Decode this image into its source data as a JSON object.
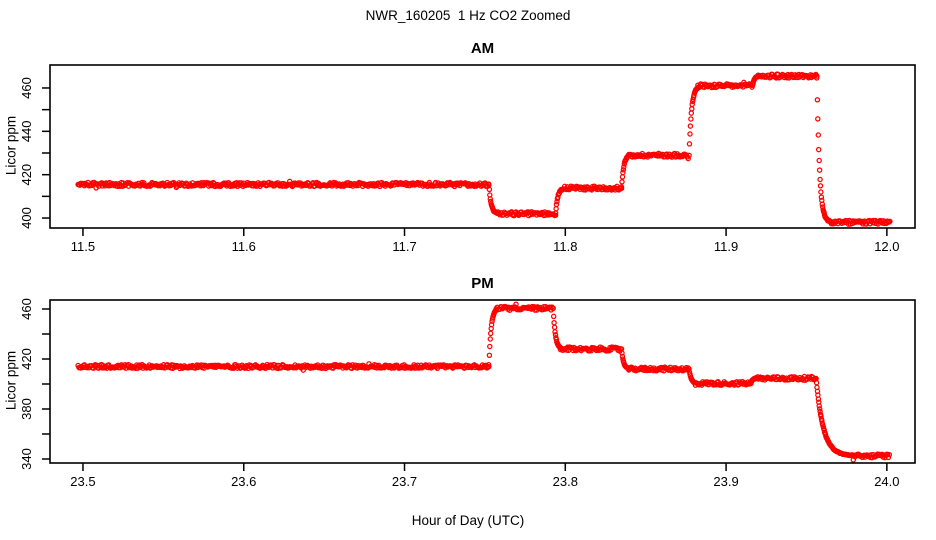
{
  "title": "NWR_160205  1 Hz CO2 Zoomed",
  "xlabel": "Hour of Day (UTC)",
  "point_color": "#FF0000",
  "axis_color": "#000000",
  "chart_data": [
    {
      "type": "scatter",
      "panel": "AM",
      "title": "AM",
      "ylabel": "Licor ppm",
      "marker": "open-circle",
      "grid": false,
      "xlim": [
        11.4795,
        12.0175
      ],
      "ylim": [
        395.4,
        470.6
      ],
      "xticks": [
        11.5,
        11.6,
        11.7,
        11.8,
        11.9,
        12.0
      ],
      "xtick_labels": [
        "11.5",
        "11.6",
        "11.7",
        "11.8",
        "11.9",
        "12.0"
      ],
      "yticks": [
        400,
        420,
        440,
        460
      ],
      "ytick_labels": [
        "400",
        "420",
        "440",
        "460"
      ],
      "yticks_minor": [
        410,
        430,
        450
      ],
      "noise_ppm": 0.9,
      "segments": [
        {
          "kind": "plateau",
          "x0": 11.497,
          "x1": 11.7525,
          "y": 415.5
        },
        {
          "kind": "decay",
          "x0": 11.7525,
          "x1": 11.757,
          "from": 415.5,
          "to": 402,
          "tau": 0.0013
        },
        {
          "kind": "plateau",
          "x0": 11.757,
          "x1": 11.794,
          "y": 402
        },
        {
          "kind": "decay",
          "x0": 11.794,
          "x1": 11.7985,
          "from": 402,
          "to": 413.8,
          "tau": 0.0013
        },
        {
          "kind": "plateau",
          "x0": 11.7985,
          "x1": 11.835,
          "y": 413.8
        },
        {
          "kind": "decay",
          "x0": 11.835,
          "x1": 11.8395,
          "from": 413.8,
          "to": 429,
          "tau": 0.0013
        },
        {
          "kind": "plateau",
          "x0": 11.8395,
          "x1": 11.877,
          "y": 429
        },
        {
          "kind": "decay",
          "x0": 11.877,
          "x1": 11.8825,
          "from": 429,
          "to": 461,
          "tau": 0.0015
        },
        {
          "kind": "plateau",
          "x0": 11.8825,
          "x1": 11.9165,
          "y": 461
        },
        {
          "kind": "decay",
          "x0": 11.9165,
          "x1": 11.92,
          "from": 461,
          "to": 465.5,
          "tau": 0.001
        },
        {
          "kind": "plateau",
          "x0": 11.92,
          "x1": 11.9565,
          "y": 465.5
        },
        {
          "kind": "decay",
          "x0": 11.9565,
          "x1": 11.9655,
          "from": 465.5,
          "to": 398,
          "tau": 0.0016
        },
        {
          "kind": "plateau",
          "x0": 11.9655,
          "x1": 12.002,
          "y": 398
        }
      ]
    },
    {
      "type": "scatter",
      "panel": "PM",
      "title": "PM",
      "ylabel": "Licor ppm",
      "marker": "open-circle",
      "grid": false,
      "xlim": [
        23.4795,
        24.0175
      ],
      "ylim": [
        336.8,
        467.2
      ],
      "xticks": [
        23.5,
        23.6,
        23.7,
        23.8,
        23.9,
        24.0
      ],
      "xtick_labels": [
        "23.5",
        "23.6",
        "23.7",
        "23.8",
        "23.9",
        "24.0"
      ],
      "yticks": [
        340,
        380,
        420,
        460
      ],
      "ytick_labels": [
        "340",
        "380",
        "420",
        "460"
      ],
      "yticks_minor": [
        360,
        400,
        440
      ],
      "noise_ppm": 1.5,
      "segments": [
        {
          "kind": "plateau",
          "x0": 23.497,
          "x1": 23.7525,
          "y": 414
        },
        {
          "kind": "decay",
          "x0": 23.7525,
          "x1": 23.757,
          "from": 414,
          "to": 460.5,
          "tau": 0.0013
        },
        {
          "kind": "plateau",
          "x0": 23.757,
          "x1": 23.7925,
          "y": 460.5
        },
        {
          "kind": "decay",
          "x0": 23.7925,
          "x1": 23.797,
          "from": 460.5,
          "to": 428,
          "tau": 0.0013
        },
        {
          "kind": "plateau",
          "x0": 23.797,
          "x1": 23.835,
          "y": 428
        },
        {
          "kind": "decay",
          "x0": 23.835,
          "x1": 23.8395,
          "from": 428,
          "to": 412,
          "tau": 0.0012
        },
        {
          "kind": "plateau",
          "x0": 23.8395,
          "x1": 23.877,
          "y": 412
        },
        {
          "kind": "decay",
          "x0": 23.877,
          "x1": 23.881,
          "from": 412,
          "to": 400.5,
          "tau": 0.0012
        },
        {
          "kind": "plateau",
          "x0": 23.881,
          "x1": 23.9155,
          "y": 400.5
        },
        {
          "kind": "decay",
          "x0": 23.9155,
          "x1": 23.9185,
          "from": 400.5,
          "to": 404.5,
          "tau": 0.0008
        },
        {
          "kind": "plateau",
          "x0": 23.9185,
          "x1": 23.956,
          "y": 404.5
        },
        {
          "kind": "decay",
          "x0": 23.956,
          "x1": 23.978,
          "from": 404.5,
          "to": 342.5,
          "tau": 0.0045
        },
        {
          "kind": "plateau",
          "x0": 23.978,
          "x1": 24.002,
          "y": 342.5
        }
      ]
    }
  ]
}
